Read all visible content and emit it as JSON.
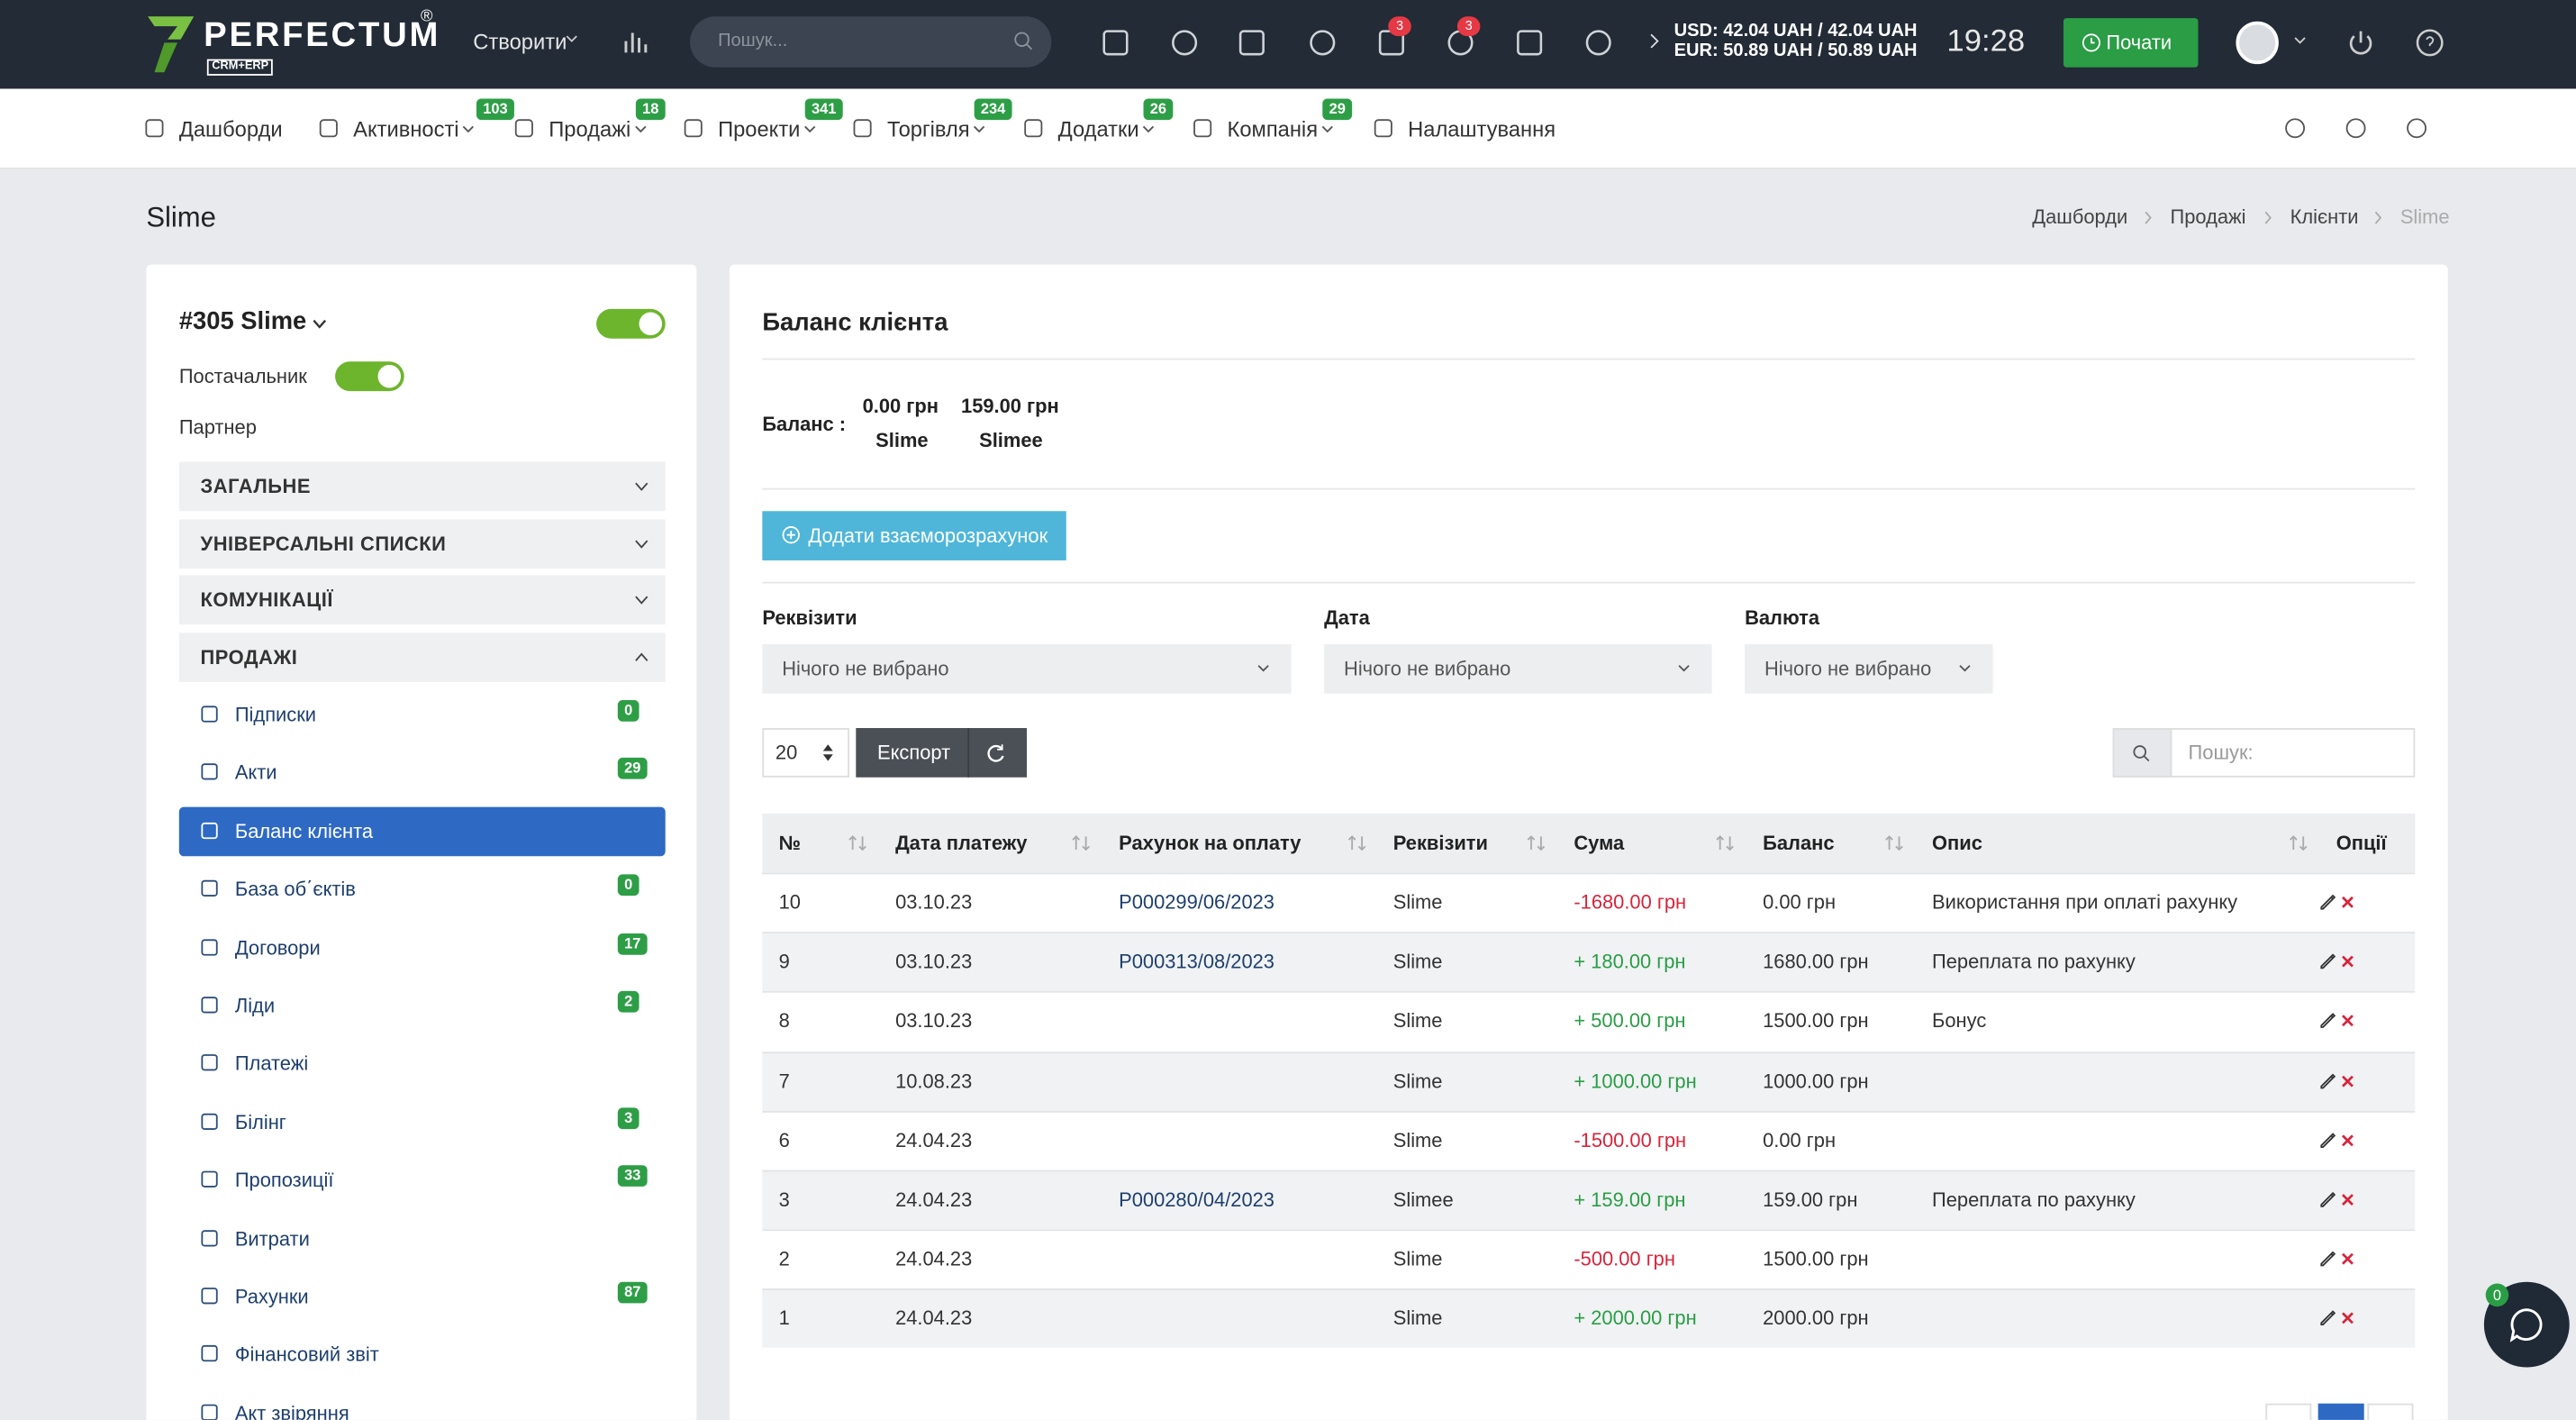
{
  "header": {
    "logo": "PERFECTUM",
    "logo_mark": "®",
    "logo_sub": "CRM+ERP",
    "create": "Створити",
    "search_placeholder": "Пошук...",
    "badges": [
      "3",
      "3"
    ],
    "currency": [
      "USD: 42.04 UAH / 42.04 UAH",
      "EUR: 50.89 UAH / 50.89 UAH"
    ],
    "time": "19:28",
    "start": "Почати"
  },
  "nav": [
    {
      "label": "Дашборди"
    },
    {
      "label": "Активності",
      "badge": "103"
    },
    {
      "label": "Продажі",
      "badge": "18"
    },
    {
      "label": "Проекти",
      "badge": "341"
    },
    {
      "label": "Торгівля",
      "badge": "234"
    },
    {
      "label": "Додатки",
      "badge": "26"
    },
    {
      "label": "Компанія",
      "badge": "29"
    },
    {
      "label": "Налаштування"
    }
  ],
  "page": {
    "title": "Slime",
    "breadcrumbs": [
      "Дашборди",
      "Продажі",
      "Клієнти",
      "Slime"
    ]
  },
  "sidebar": {
    "title": "#305 Slime",
    "supplier": "Постачальник",
    "partner": "Партнер",
    "sections": [
      "ЗАГАЛЬНЕ",
      "УНІВЕРСАЛЬНІ СПИСКИ",
      "КОМУНІКАЦІЇ",
      "ПРОДАЖІ"
    ],
    "items": [
      {
        "label": "Підписки",
        "badge": "0"
      },
      {
        "label": "Акти",
        "badge": "29"
      },
      {
        "label": "Баланс клієнта",
        "active": true
      },
      {
        "label": "База об΄єктів",
        "badge": "0"
      },
      {
        "label": "Договори",
        "badge": "17"
      },
      {
        "label": "Ліди",
        "badge": "2"
      },
      {
        "label": "Платежі"
      },
      {
        "label": "Білінг",
        "badge": "3"
      },
      {
        "label": "Пропозиції",
        "badge": "33"
      },
      {
        "label": "Витрати"
      },
      {
        "label": "Рахунки",
        "badge": "87"
      },
      {
        "label": "Фінансовий звіт"
      },
      {
        "label": "Акт звіряння"
      }
    ]
  },
  "main": {
    "title": "Баланс клієнта",
    "balance_label": "Баланс :",
    "balances": [
      {
        "amount": "0.00 грн",
        "name": "Slime"
      },
      {
        "amount": "159.00 грн",
        "name": "Slimee"
      }
    ],
    "add_button": "Додати взаєморозрахунок",
    "filters": [
      {
        "label": "Реквізити",
        "placeholder": "Нічого не вибрано"
      },
      {
        "label": "Дата",
        "placeholder": "Нічого не вибрано"
      },
      {
        "label": "Валюта",
        "placeholder": "Нічого не вибрано"
      }
    ],
    "page_size": "20",
    "export": "Експорт",
    "search_label": "Пошук:",
    "table": {
      "columns": [
        "№",
        "Дата платежу",
        "Рахунок на оплату",
        "Реквізити",
        "Сума",
        "Баланс",
        "Опис",
        "Опції"
      ],
      "rows": [
        [
          "10",
          "03.10.23",
          "P000299/06/2023",
          "Slime",
          "-1680.00 грн",
          "0.00 грн",
          "Використання при оплаті рахунку"
        ],
        [
          "9",
          "03.10.23",
          "P000313/08/2023",
          "Slime",
          "+ 180.00 грн",
          "1680.00 грн",
          "Переплата по рахунку"
        ],
        [
          "8",
          "03.10.23",
          "",
          "Slime",
          "+ 500.00 грн",
          "1500.00 грн",
          "Бонус"
        ],
        [
          "7",
          "10.08.23",
          "",
          "Slime",
          "+ 1000.00 грн",
          "1000.00 грн",
          ""
        ],
        [
          "6",
          "24.04.23",
          "",
          "Slime",
          "-1500.00 грн",
          "0.00 грн",
          ""
        ],
        [
          "3",
          "24.04.23",
          "P000280/04/2023",
          "Slimee",
          "+ 159.00 грн",
          "159.00 грн",
          "Переплата по рахунку"
        ],
        [
          "2",
          "24.04.23",
          "",
          "Slime",
          "-500.00 грн",
          "1500.00 грн",
          ""
        ],
        [
          "1",
          "24.04.23",
          "",
          "Slime",
          "+ 2000.00 грн",
          "2000.00 грн",
          ""
        ]
      ]
    }
  },
  "chat_badge": "0"
}
